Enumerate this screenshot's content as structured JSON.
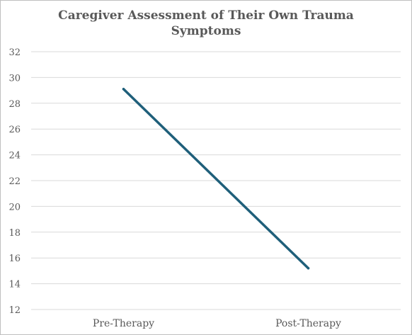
{
  "chart_data": {
    "type": "line",
    "title_lines": [
      "Caregiver Assessment of Their Own Trauma",
      "Symptoms"
    ],
    "categories": [
      "Pre-Therapy",
      "Post-Therapy"
    ],
    "series": [
      {
        "values": [
          29.1,
          15.2
        ],
        "color": "#1f5f7a"
      }
    ],
    "ylim": [
      12,
      32
    ],
    "yticks": [
      12,
      14,
      16,
      18,
      20,
      22,
      24,
      26,
      28,
      30,
      32
    ],
    "grid": true,
    "legend": "none",
    "xlabel": "",
    "ylabel": ""
  }
}
